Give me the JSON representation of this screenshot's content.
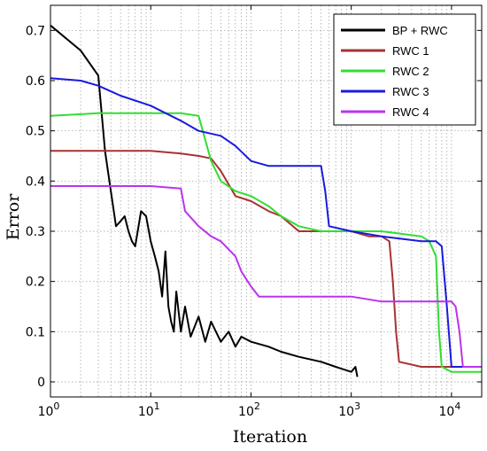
{
  "chart_data": {
    "type": "line",
    "xlabel": "Iteration",
    "ylabel": "Error",
    "xscale": "log",
    "xlim": [
      1,
      20000
    ],
    "ylim": [
      -0.03,
      0.75
    ],
    "grid": true,
    "legend_position": "top-right",
    "x_ticks": [
      1,
      10,
      100,
      1000,
      10000
    ],
    "x_tick_labels": [
      {
        "base": "10",
        "exp": "0"
      },
      {
        "base": "10",
        "exp": "1"
      },
      {
        "base": "10",
        "exp": "2"
      },
      {
        "base": "10",
        "exp": "3"
      },
      {
        "base": "10",
        "exp": "4"
      }
    ],
    "y_ticks": [
      0,
      0.1,
      0.2,
      0.3,
      0.4,
      0.5,
      0.6,
      0.7
    ],
    "y_tick_labels": [
      "0",
      "0.1",
      "0.2",
      "0.3",
      "0.4",
      "0.5",
      "0.6",
      "0.7"
    ],
    "series": [
      {
        "name": "BP + RWC",
        "color": "#000000",
        "x": [
          1,
          2,
          3,
          3.5,
          4,
          4.5,
          5,
          5.5,
          6,
          6.5,
          7,
          8,
          9,
          10,
          11,
          12,
          13,
          14,
          15,
          16,
          17,
          18,
          20,
          22,
          25,
          30,
          35,
          40,
          50,
          60,
          70,
          80,
          100,
          150,
          200,
          300,
          500,
          700,
          1000,
          1100,
          1150
        ],
        "y": [
          0.71,
          0.66,
          0.61,
          0.46,
          0.38,
          0.31,
          0.32,
          0.33,
          0.3,
          0.28,
          0.27,
          0.34,
          0.33,
          0.28,
          0.25,
          0.22,
          0.17,
          0.26,
          0.15,
          0.12,
          0.1,
          0.18,
          0.1,
          0.15,
          0.09,
          0.13,
          0.08,
          0.12,
          0.08,
          0.1,
          0.07,
          0.09,
          0.08,
          0.07,
          0.06,
          0.05,
          0.04,
          0.03,
          0.02,
          0.03,
          0.01
        ]
      },
      {
        "name": "RWC 1",
        "color": "#a83232",
        "x": [
          1,
          3,
          10,
          20,
          30,
          40,
          50,
          70,
          100,
          150,
          200,
          300,
          500,
          700,
          1000,
          1500,
          2000,
          2400,
          2600,
          2800,
          3000,
          5000,
          10000,
          15000,
          20000
        ],
        "y": [
          0.46,
          0.46,
          0.46,
          0.455,
          0.45,
          0.445,
          0.42,
          0.37,
          0.36,
          0.34,
          0.33,
          0.3,
          0.3,
          0.3,
          0.3,
          0.29,
          0.29,
          0.28,
          0.2,
          0.1,
          0.04,
          0.03,
          0.03,
          0.03,
          0.03
        ]
      },
      {
        "name": "RWC 2",
        "color": "#33dd33",
        "x": [
          1,
          3,
          10,
          20,
          30,
          40,
          50,
          70,
          100,
          150,
          200,
          300,
          500,
          1000,
          2000,
          5000,
          6000,
          7000,
          7500,
          8000,
          10000,
          15000,
          20000
        ],
        "y": [
          0.53,
          0.535,
          0.535,
          0.535,
          0.53,
          0.44,
          0.4,
          0.38,
          0.37,
          0.35,
          0.33,
          0.31,
          0.3,
          0.3,
          0.3,
          0.29,
          0.28,
          0.25,
          0.1,
          0.03,
          0.02,
          0.02,
          0.02
        ]
      },
      {
        "name": "RWC 3",
        "color": "#1a1add",
        "x": [
          1,
          2,
          3,
          5,
          10,
          20,
          30,
          50,
          70,
          100,
          150,
          200,
          300,
          400,
          500,
          550,
          600,
          1000,
          2000,
          5000,
          7000,
          8000,
          9000,
          10000,
          15000,
          20000
        ],
        "y": [
          0.605,
          0.6,
          0.59,
          0.57,
          0.55,
          0.52,
          0.5,
          0.49,
          0.47,
          0.44,
          0.43,
          0.43,
          0.43,
          0.43,
          0.43,
          0.38,
          0.31,
          0.3,
          0.29,
          0.28,
          0.28,
          0.27,
          0.15,
          0.03,
          0.03,
          0.03
        ]
      },
      {
        "name": "RWC 4",
        "color": "#bb33ee",
        "x": [
          1,
          3,
          10,
          20,
          22,
          30,
          40,
          50,
          70,
          80,
          100,
          120,
          150,
          200,
          500,
          1000,
          2000,
          3000,
          5000,
          10000,
          11000,
          12000,
          13000,
          15000,
          20000
        ],
        "y": [
          0.39,
          0.39,
          0.39,
          0.385,
          0.34,
          0.31,
          0.29,
          0.28,
          0.25,
          0.22,
          0.19,
          0.17,
          0.17,
          0.17,
          0.17,
          0.17,
          0.16,
          0.16,
          0.16,
          0.16,
          0.15,
          0.1,
          0.03,
          0.03,
          0.03
        ]
      }
    ]
  }
}
